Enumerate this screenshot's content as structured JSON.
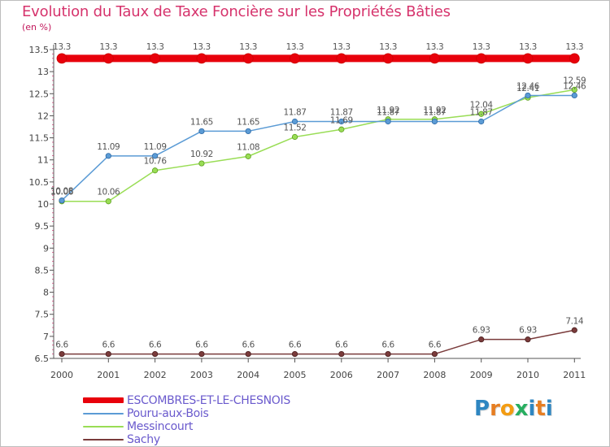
{
  "title": "Evolution du Taux de Taxe Foncière sur les Propriétés Bâties",
  "unit": "(en %)",
  "brand": {
    "text": "Proxiti",
    "letters": [
      "P",
      "r",
      "o",
      "x",
      "i",
      "t",
      "i"
    ],
    "colors": [
      "#2e86c1",
      "#e67e22",
      "#f39c12",
      "#27ae60",
      "#2e86c1",
      "#e67e22",
      "#2e86c1"
    ]
  },
  "chart_data": {
    "type": "line",
    "title": "Evolution du Taux de Taxe Foncière sur les Propriétés Bâties",
    "ylabel": "(en %)",
    "xlabel": "",
    "x": [
      "2000",
      "2001",
      "2002",
      "2003",
      "2004",
      "2005",
      "2006",
      "2007",
      "2008",
      "2009",
      "2010",
      "2011"
    ],
    "ylim": [
      6.5,
      13.5
    ],
    "yticks": [
      "6.5",
      "7",
      "7.5",
      "8",
      "8.5",
      "9",
      "9.5",
      "10",
      "10.5",
      "11",
      "11.5",
      "12",
      "12.5",
      "13",
      "13.5"
    ],
    "grid": false,
    "legend_position": "bottom-left",
    "series": [
      {
        "name": "ESCOMBRES-ET-LE-CHESNOIS",
        "color": "#e8000b",
        "width": 9,
        "values": [
          13.3,
          13.3,
          13.3,
          13.3,
          13.3,
          13.3,
          13.3,
          13.3,
          13.3,
          13.3,
          13.3,
          13.3
        ],
        "labels": [
          "13.3",
          "13.3",
          "13.3",
          "13.3",
          "13.3",
          "13.3",
          "13.3",
          "13.3",
          "13.3",
          "13.3",
          "13.3",
          "13.3"
        ]
      },
      {
        "name": "Pouru-aux-Bois",
        "color": "#5b9bd5",
        "width": 1.5,
        "values": [
          10.08,
          11.09,
          11.09,
          11.65,
          11.65,
          11.87,
          11.87,
          11.87,
          11.87,
          11.87,
          12.46,
          12.46
        ],
        "labels": [
          "10.08",
          "11.09",
          "11.09",
          "11.65",
          "11.65",
          "11.87",
          "11.87",
          "11.87",
          "11.87",
          "11.87",
          "12.46",
          "12.46"
        ]
      },
      {
        "name": "Messincourt",
        "color": "#99dd55",
        "width": 1.5,
        "values": [
          10.06,
          10.06,
          10.76,
          10.92,
          11.08,
          11.52,
          11.69,
          11.92,
          11.92,
          12.04,
          12.41,
          12.59
        ],
        "labels": [
          "10.06",
          "10.06",
          "10.76",
          "10.92",
          "11.08",
          "11.52",
          "11.69",
          "11.92",
          "11.92",
          "12.04",
          "12.41",
          "12.59"
        ]
      },
      {
        "name": "Sachy",
        "color": "#7a3b3b",
        "width": 1.5,
        "values": [
          6.6,
          6.6,
          6.6,
          6.6,
          6.6,
          6.6,
          6.6,
          6.6,
          6.6,
          6.93,
          6.93,
          7.14
        ],
        "labels": [
          "6.6",
          "6.6",
          "6.6",
          "6.6",
          "6.6",
          "6.6",
          "6.6",
          "6.6",
          "6.6",
          "6.93",
          "6.93",
          "7.14"
        ]
      }
    ]
  }
}
